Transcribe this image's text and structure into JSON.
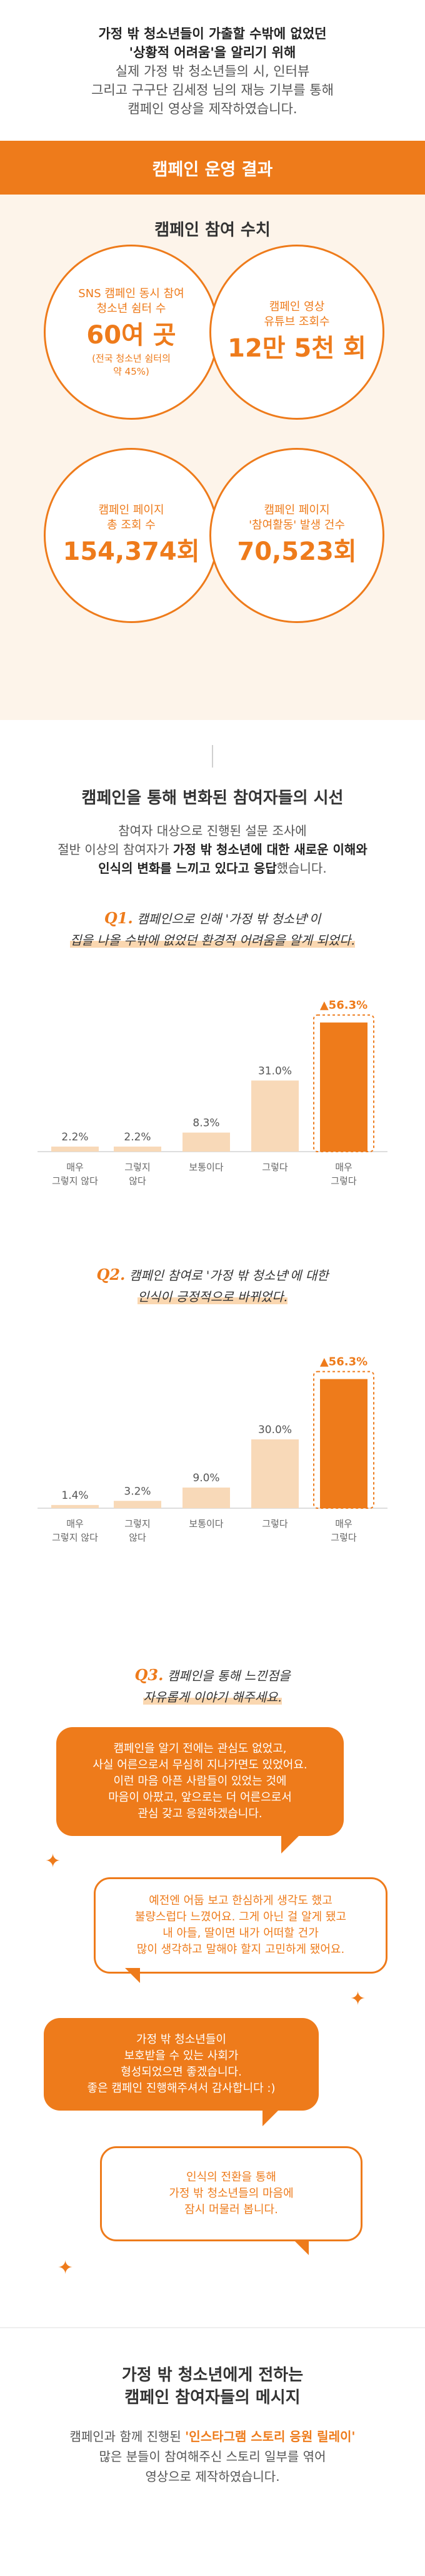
{
  "intro": {
    "line1": "가정 밖 청소년들이 가출할 수밖에 없었던",
    "line2": "'상황적 어려움'을 알리기 위해",
    "line3": "실제 가정 밖 청소년들의 시, 인터뷰",
    "line4": "그리고 구구단 김세정 님의 재능 기부를 통해",
    "line5": "캠페인 영상을 제작하였습니다."
  },
  "banner": {
    "title": "캠페인 운영 결과"
  },
  "stats": {
    "title": "캠페인 참여 수치",
    "items": [
      {
        "label1": "SNS 캠페인 동시 참여",
        "label2": "청소년 쉼터 수",
        "value": "60여 곳",
        "note1": "(전국 청소년 쉼터의",
        "note2": "약 45%)"
      },
      {
        "label1": "캠페인 영상",
        "label2": "유튜브 조회수",
        "value": "12만 5천 회"
      },
      {
        "label1": "캠페인 페이지",
        "label2": "총 조회 수",
        "value": "154,374회"
      },
      {
        "label1": "캠페인 페이지",
        "label2": "'참여활동' 발생 건수",
        "value": "70,523회"
      }
    ]
  },
  "change": {
    "title": "캠페인을 통해 변화된 참여자들의 시선",
    "desc1": "참여자 대상으로 진행된 설문 조사에",
    "desc2_pre": "절반 이상의 참여자가 ",
    "desc2_bold": "가정 밖 청소년에 대한 새로운 이해와",
    "desc3_bold": "인식의 변화를 느끼고 있다고 응답",
    "desc3_post": "했습니다."
  },
  "q1": {
    "num": "Q1.",
    "text1": "캠페인으로 인해 '가정 밖 청소년'이",
    "text2": "집을 나올 수밖에 없었던 환경적 어려움을 알게 되었다."
  },
  "chart_data": [
    {
      "type": "bar",
      "categories": [
        "매우 그렇지 않다",
        "그렇지 않다",
        "보통이다",
        "그렇다",
        "매우 그렇다"
      ],
      "values": [
        2.2,
        2.2,
        8.3,
        31.0,
        56.3
      ],
      "value_labels": [
        "2.2%",
        "2.2%",
        "8.3%",
        "31.0%",
        "▲56.3%"
      ],
      "highlight_index": 4,
      "ylim": [
        0,
        60
      ]
    },
    {
      "type": "bar",
      "categories": [
        "매우 그렇지 않다",
        "그렇지 않다",
        "보통이다",
        "그렇다",
        "매우 그렇다"
      ],
      "values": [
        1.4,
        3.2,
        9.0,
        30.0,
        56.3
      ],
      "value_labels": [
        "1.4%",
        "3.2%",
        "9.0%",
        "30.0%",
        "▲56.3%"
      ],
      "highlight_index": 4,
      "ylim": [
        0,
        60
      ]
    }
  ],
  "chart_labels": {
    "c1": [
      "매우",
      "그렇지 않다"
    ],
    "c2": [
      "그렇지",
      "않다"
    ],
    "c3": [
      "보통이다"
    ],
    "c4": [
      "그렇다"
    ],
    "c5": [
      "매우",
      "그렇다"
    ]
  },
  "q2": {
    "num": "Q2.",
    "text1": "캠페인 참여로 '가정 밖 청소년'에 대한",
    "text2": "인식이 긍정적으로 바뀌었다."
  },
  "q3": {
    "num": "Q3.",
    "text1": "캠페인을 통해 느낀점을",
    "text2": "자유롭게 이야기 해주세요."
  },
  "bubbles": [
    {
      "l1": "캠페인을 알기 전에는 관심도 없었고,",
      "l2": "사실 어른으로서 무심히 지나가면도 있었어요.",
      "l3": "이런 마음 아픈 사람들이 있었는 것에",
      "l4": "마음이 아팠고, 앞으로는 더 어른으로서",
      "l5": "관심 갖고 응원하겠습니다."
    },
    {
      "l1": "예전엔 어둡 보고 한심하게 생각도 했고",
      "l2": "불량스럽다 느꼈어요. 그게 아닌 걸 알게 됐고",
      "l3": "내 아들, 딸이면 내가 어떠할 건가",
      "l4": "많이 생각하고 말해야 할지 고민하게 됐어요."
    },
    {
      "l1": "가정 밖 청소년들이",
      "l2": "보호받을 수 있는 사회가",
      "l3": "형성되었으면 좋겠습니다.",
      "l4": "좋은 캠페인 진행해주셔서 감사합니다 :)"
    },
    {
      "l1": "인식의 전환을 통해",
      "l2": "가정 밖 청소년들의 마음에",
      "l3": "잠시 머물러 봅니다."
    }
  ],
  "final": {
    "title1": "가정 밖 청소년에게 전하는",
    "title2": "캠페인 참여자들의 메시지",
    "d1_pre": "캠페인과 함께 진행된 ",
    "d1_hl": "'인스타그램 스토리 응원 릴레이'",
    "d2": "많은 분들이 참여해주신 스토리 일부를 엮어",
    "d3": "영상으로 제작하였습니다."
  },
  "colors": {
    "accent": "#ee7b1b",
    "accent_light": "#f8d9b8",
    "bg_light": "#fdf4ea"
  },
  "icons": [
    "sparkle-icon",
    "triangle-up-icon"
  ]
}
